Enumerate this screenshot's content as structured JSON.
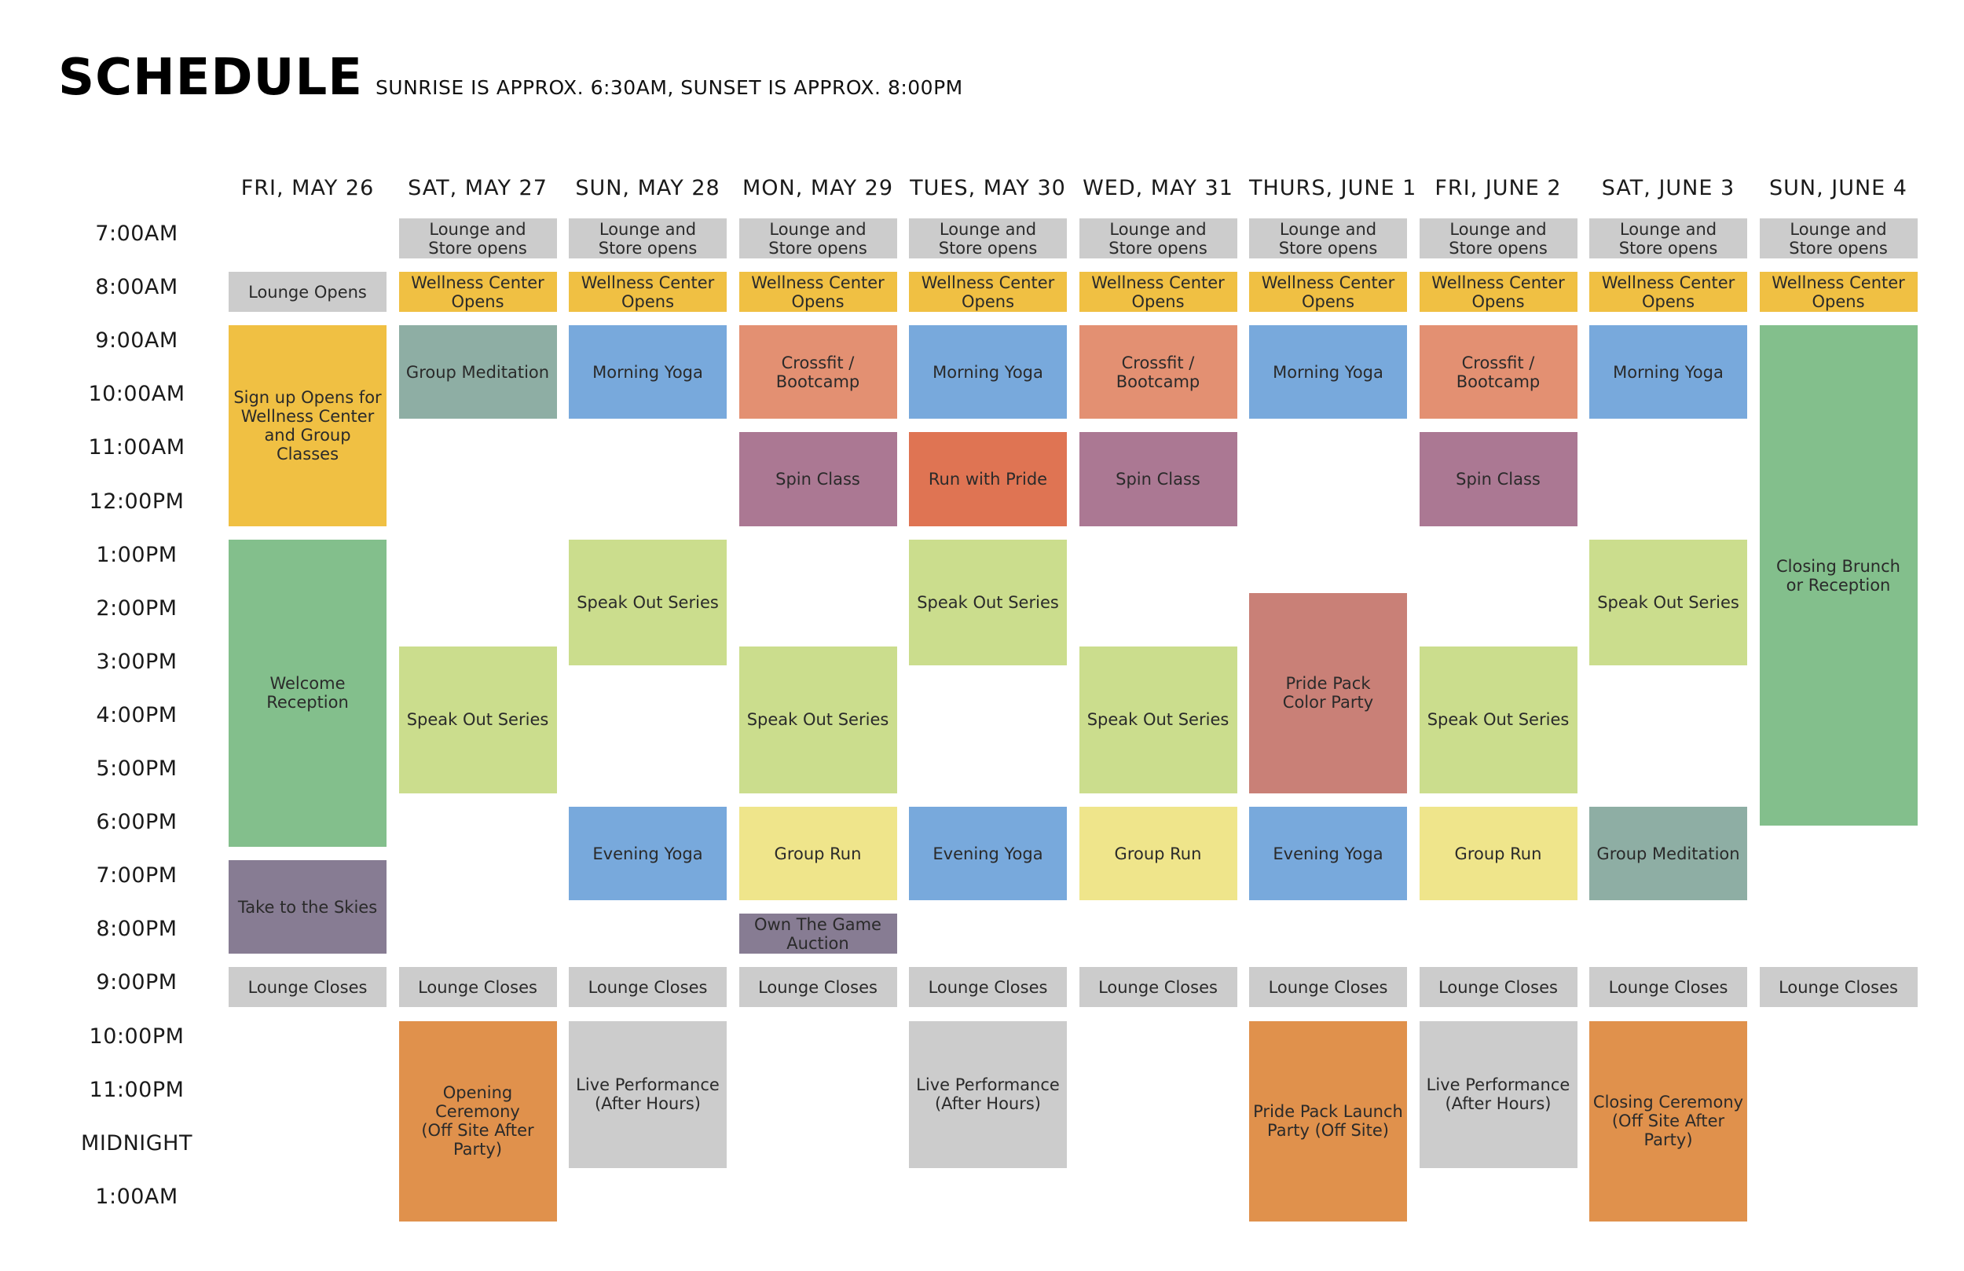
{
  "header": {
    "title": "SCHEDULE",
    "subtitle": "SUNRISE IS APPROX. 6:30AM, SUNSET IS APPROX. 8:00PM"
  },
  "colors": {
    "gray": "#cccccc",
    "wellness": "#f0c043",
    "sage": "#8eaea4",
    "yoga": "#78a9dc",
    "crossfit": "#e39072",
    "spin": "#ab7893",
    "pride": "#df7453",
    "signup": "#f0c043",
    "welcome": "#83bf8c",
    "skies": "#877c93",
    "speak": "#cbdd8d",
    "groupRun": "#efe58b",
    "ownGame": "#877c93",
    "ceremony": "#e0914c",
    "colorParty": "#c98077",
    "brunch": "#83bf8c"
  },
  "days": [
    "FRI, MAY 26",
    "SAT, MAY 27",
    "SUN, MAY 28",
    "MON, MAY 29",
    "TUES, MAY 30",
    "WED, MAY 31",
    "THURS, JUNE 1",
    "FRI, JUNE 2",
    "SAT, JUNE 3",
    "SUN, JUNE 4"
  ],
  "times": [
    "7:00AM",
    "8:00AM",
    "9:00AM",
    "10:00AM",
    "11:00AM",
    "12:00PM",
    "1:00PM",
    "2:00PM",
    "3:00PM",
    "4:00PM",
    "5:00PM",
    "6:00PM",
    "7:00PM",
    "8:00PM",
    "9:00PM",
    "10:00PM",
    "11:00PM",
    "MIDNIGHT",
    "1:00AM"
  ],
  "events": [
    {
      "day": 1,
      "start": 0,
      "end": 0.75,
      "label": "Lounge and\nStore opens",
      "color": "gray"
    },
    {
      "day": 2,
      "start": 0,
      "end": 0.75,
      "label": "Lounge and\nStore opens",
      "color": "gray"
    },
    {
      "day": 3,
      "start": 0,
      "end": 0.75,
      "label": "Lounge and\nStore opens",
      "color": "gray"
    },
    {
      "day": 4,
      "start": 0,
      "end": 0.75,
      "label": "Lounge and\nStore opens",
      "color": "gray"
    },
    {
      "day": 5,
      "start": 0,
      "end": 0.75,
      "label": "Lounge and\nStore opens",
      "color": "gray"
    },
    {
      "day": 6,
      "start": 0,
      "end": 0.75,
      "label": "Lounge and\nStore opens",
      "color": "gray"
    },
    {
      "day": 7,
      "start": 0,
      "end": 0.75,
      "label": "Lounge and\nStore opens",
      "color": "gray"
    },
    {
      "day": 8,
      "start": 0,
      "end": 0.75,
      "label": "Lounge and\nStore opens",
      "color": "gray"
    },
    {
      "day": 9,
      "start": 0,
      "end": 0.75,
      "label": "Lounge and\nStore opens",
      "color": "gray"
    },
    {
      "day": 0,
      "start": 1,
      "end": 1.75,
      "label": "Lounge Opens",
      "color": "gray"
    },
    {
      "day": 1,
      "start": 1,
      "end": 1.75,
      "label": "Wellness Center\nOpens",
      "color": "wellness"
    },
    {
      "day": 2,
      "start": 1,
      "end": 1.75,
      "label": "Wellness Center\nOpens",
      "color": "wellness"
    },
    {
      "day": 3,
      "start": 1,
      "end": 1.75,
      "label": "Wellness Center\nOpens",
      "color": "wellness"
    },
    {
      "day": 4,
      "start": 1,
      "end": 1.75,
      "label": "Wellness Center\nOpens",
      "color": "wellness"
    },
    {
      "day": 5,
      "start": 1,
      "end": 1.75,
      "label": "Wellness Center\nOpens",
      "color": "wellness"
    },
    {
      "day": 6,
      "start": 1,
      "end": 1.75,
      "label": "Wellness Center\nOpens",
      "color": "wellness"
    },
    {
      "day": 7,
      "start": 1,
      "end": 1.75,
      "label": "Wellness Center\nOpens",
      "color": "wellness"
    },
    {
      "day": 8,
      "start": 1,
      "end": 1.75,
      "label": "Wellness Center\nOpens",
      "color": "wellness"
    },
    {
      "day": 9,
      "start": 1,
      "end": 1.75,
      "label": "Wellness Center\nOpens",
      "color": "wellness"
    },
    {
      "day": 0,
      "start": 2,
      "end": 5.75,
      "label": "Sign up Opens for\nWellness Center\nand Group Classes",
      "color": "signup"
    },
    {
      "day": 1,
      "start": 2,
      "end": 3.75,
      "label": "Group Meditation",
      "color": "sage"
    },
    {
      "day": 2,
      "start": 2,
      "end": 3.75,
      "label": "Morning Yoga",
      "color": "yoga"
    },
    {
      "day": 3,
      "start": 2,
      "end": 3.75,
      "label": "Crossfit / Bootcamp",
      "color": "crossfit"
    },
    {
      "day": 4,
      "start": 2,
      "end": 3.75,
      "label": "Morning Yoga",
      "color": "yoga"
    },
    {
      "day": 5,
      "start": 2,
      "end": 3.75,
      "label": "Crossfit / Bootcamp",
      "color": "crossfit"
    },
    {
      "day": 6,
      "start": 2,
      "end": 3.75,
      "label": "Morning Yoga",
      "color": "yoga"
    },
    {
      "day": 7,
      "start": 2,
      "end": 3.75,
      "label": "Crossfit / Bootcamp",
      "color": "crossfit"
    },
    {
      "day": 8,
      "start": 2,
      "end": 3.75,
      "label": "Morning Yoga",
      "color": "yoga"
    },
    {
      "day": 9,
      "start": 2,
      "end": 11.35,
      "label": "Closing Brunch\nor Reception",
      "color": "brunch"
    },
    {
      "day": 3,
      "start": 4,
      "end": 5.75,
      "label": "Spin Class",
      "color": "spin"
    },
    {
      "day": 4,
      "start": 4,
      "end": 5.75,
      "label": "Run with Pride",
      "color": "pride"
    },
    {
      "day": 5,
      "start": 4,
      "end": 5.75,
      "label": "Spin Class",
      "color": "spin"
    },
    {
      "day": 7,
      "start": 4,
      "end": 5.75,
      "label": "Spin Class",
      "color": "spin"
    },
    {
      "day": 0,
      "start": 6,
      "end": 11.75,
      "label": "Welcome Reception",
      "color": "welcome"
    },
    {
      "day": 2,
      "start": 6,
      "end": 8.35,
      "label": "Speak Out Series",
      "color": "speak"
    },
    {
      "day": 4,
      "start": 6,
      "end": 8.35,
      "label": "Speak Out Series",
      "color": "speak"
    },
    {
      "day": 8,
      "start": 6,
      "end": 8.35,
      "label": "Speak Out Series",
      "color": "speak"
    },
    {
      "day": 6,
      "start": 7,
      "end": 10.75,
      "label": "Pride Pack\nColor Party",
      "color": "colorParty"
    },
    {
      "day": 1,
      "start": 8,
      "end": 10.75,
      "label": "Speak Out Series",
      "color": "speak"
    },
    {
      "day": 3,
      "start": 8,
      "end": 10.75,
      "label": "Speak Out Series",
      "color": "speak"
    },
    {
      "day": 5,
      "start": 8,
      "end": 10.75,
      "label": "Speak Out Series",
      "color": "speak"
    },
    {
      "day": 7,
      "start": 8,
      "end": 10.75,
      "label": "Speak Out Series",
      "color": "speak"
    },
    {
      "day": 2,
      "start": 11,
      "end": 12.75,
      "label": "Evening Yoga",
      "color": "yoga"
    },
    {
      "day": 3,
      "start": 11,
      "end": 12.75,
      "label": "Group Run",
      "color": "groupRun"
    },
    {
      "day": 4,
      "start": 11,
      "end": 12.75,
      "label": "Evening Yoga",
      "color": "yoga"
    },
    {
      "day": 5,
      "start": 11,
      "end": 12.75,
      "label": "Group Run",
      "color": "groupRun"
    },
    {
      "day": 6,
      "start": 11,
      "end": 12.75,
      "label": "Evening Yoga",
      "color": "yoga"
    },
    {
      "day": 7,
      "start": 11,
      "end": 12.75,
      "label": "Group Run",
      "color": "groupRun"
    },
    {
      "day": 8,
      "start": 11,
      "end": 12.75,
      "label": "Group Meditation",
      "color": "sage"
    },
    {
      "day": 0,
      "start": 12,
      "end": 13.75,
      "label": "Take to the Skies",
      "color": "skies"
    },
    {
      "day": 3,
      "start": 13,
      "end": 13.75,
      "label": "Own The Game\nAuction",
      "color": "ownGame"
    },
    {
      "day": 0,
      "start": 14,
      "end": 14.75,
      "label": "Lounge Closes",
      "color": "gray"
    },
    {
      "day": 1,
      "start": 14,
      "end": 14.75,
      "label": "Lounge Closes",
      "color": "gray"
    },
    {
      "day": 2,
      "start": 14,
      "end": 14.75,
      "label": "Lounge Closes",
      "color": "gray"
    },
    {
      "day": 3,
      "start": 14,
      "end": 14.75,
      "label": "Lounge Closes",
      "color": "gray"
    },
    {
      "day": 4,
      "start": 14,
      "end": 14.75,
      "label": "Lounge Closes",
      "color": "gray"
    },
    {
      "day": 5,
      "start": 14,
      "end": 14.75,
      "label": "Lounge Closes",
      "color": "gray"
    },
    {
      "day": 6,
      "start": 14,
      "end": 14.75,
      "label": "Lounge Closes",
      "color": "gray"
    },
    {
      "day": 7,
      "start": 14,
      "end": 14.75,
      "label": "Lounge Closes",
      "color": "gray"
    },
    {
      "day": 8,
      "start": 14,
      "end": 14.75,
      "label": "Lounge Closes",
      "color": "gray"
    },
    {
      "day": 9,
      "start": 14,
      "end": 14.75,
      "label": "Lounge Closes",
      "color": "gray"
    },
    {
      "day": 1,
      "start": 15,
      "end": 18.75,
      "label": "Opening Ceremony\n(Off Site After Party)",
      "color": "ceremony"
    },
    {
      "day": 2,
      "start": 15,
      "end": 17.75,
      "label": "Live Performance\n(After Hours)",
      "color": "gray"
    },
    {
      "day": 4,
      "start": 15,
      "end": 17.75,
      "label": "Live Performance\n(After Hours)",
      "color": "gray"
    },
    {
      "day": 6,
      "start": 15,
      "end": 18.75,
      "label": "Pride Pack Launch\nParty (Off Site)",
      "color": "ceremony"
    },
    {
      "day": 7,
      "start": 15,
      "end": 17.75,
      "label": "Live Performance\n(After Hours)",
      "color": "gray"
    },
    {
      "day": 8,
      "start": 15,
      "end": 18.75,
      "label": "Closing Ceremony\n(Off Site After Party)",
      "color": "ceremony"
    }
  ]
}
